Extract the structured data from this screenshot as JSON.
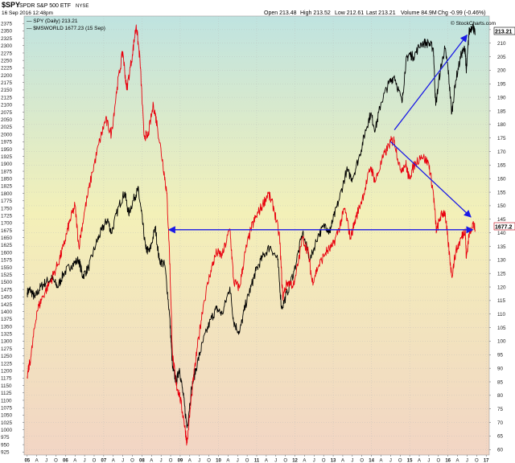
{
  "header": {
    "symbol": "$SPY",
    "name": "SPDR S&P 500 ETF",
    "exchange": "NYSE",
    "datetime": "16 Sep 2016 12:48pm",
    "open": "Open 213.48",
    "high": "High 213.52",
    "low": "Low 212.61",
    "last": "Last 213.21",
    "volume": "Volume 84.9M",
    "chg": "Chg -0.99 (-0.46%)",
    "watermark": "© StockCharts.com",
    "legend_spy": "— SPY (Daily) 213.21",
    "legend_ws": "— $MSWORLD 1677.23 (15 Sep)"
  },
  "colors": {
    "spy": "#000000",
    "msworld": "#e8000e",
    "arrow": "#1a1ae6",
    "bg_top": "#bfe3e0",
    "bg_mid": "#f3f0b8",
    "bg_bottom": "#f2d5c4"
  },
  "chart_data": {
    "type": "line",
    "left_axis": {
      "series": "$MSWORLD",
      "ylim": [
        915,
        2400
      ],
      "ticks": [
        925,
        950,
        975,
        1000,
        1025,
        1050,
        1075,
        1100,
        1125,
        1150,
        1175,
        1200,
        1225,
        1250,
        1275,
        1300,
        1325,
        1350,
        1375,
        1400,
        1425,
        1450,
        1475,
        1500,
        1525,
        1550,
        1575,
        1600,
        1625,
        1650,
        1675,
        1700,
        1725,
        1750,
        1775,
        1800,
        1825,
        1850,
        1875,
        1900,
        1925,
        1950,
        1975,
        2000,
        2025,
        2050,
        2075,
        2100,
        2125,
        2150,
        2175,
        2200,
        2225,
        2250,
        2275,
        2300,
        2325,
        2350,
        2375
      ]
    },
    "right_axis": {
      "series": "SPY",
      "ylim": [
        58,
        220
      ],
      "ticks": [
        60,
        65,
        70,
        75,
        80,
        85,
        90,
        95,
        100,
        105,
        110,
        115,
        120,
        125,
        130,
        135,
        140,
        145,
        150,
        155,
        160,
        165,
        170,
        175,
        180,
        185,
        190,
        195,
        200,
        205,
        210,
        215
      ],
      "last_value_label": "213.21",
      "msworld_value_label": "1677.2"
    },
    "x_axis": {
      "ticks": [
        "05",
        "A",
        "J",
        "O",
        "06",
        "A",
        "J",
        "O",
        "07",
        "A",
        "J",
        "O",
        "08",
        "A",
        "J",
        "O",
        "09",
        "A",
        "J",
        "O",
        "10",
        "A",
        "J",
        "O",
        "11",
        "A",
        "J",
        "O",
        "12",
        "A",
        "J",
        "O",
        "13",
        "A",
        "J",
        "O",
        "14",
        "A",
        "J",
        "O",
        "15",
        "A",
        "J",
        "O",
        "16",
        "A",
        "J",
        "O",
        "17"
      ],
      "year_ticks": [
        "05",
        "06",
        "07",
        "08",
        "09",
        "10",
        "11",
        "12",
        "13",
        "14",
        "15",
        "16",
        "17"
      ]
    },
    "series": [
      {
        "name": "SPY (Daily)",
        "axis": "right",
        "points": [
          [
            2005.0,
            118
          ],
          [
            2005.08,
            119
          ],
          [
            2005.2,
            116
          ],
          [
            2005.35,
            120
          ],
          [
            2005.5,
            122
          ],
          [
            2005.65,
            123
          ],
          [
            2005.8,
            120
          ],
          [
            2005.95,
            125
          ],
          [
            2006.15,
            128
          ],
          [
            2006.35,
            130
          ],
          [
            2006.45,
            124
          ],
          [
            2006.6,
            127
          ],
          [
            2006.8,
            136
          ],
          [
            2006.95,
            141
          ],
          [
            2007.1,
            145
          ],
          [
            2007.2,
            140
          ],
          [
            2007.4,
            150
          ],
          [
            2007.55,
            155
          ],
          [
            2007.65,
            147
          ],
          [
            2007.8,
            153
          ],
          [
            2007.9,
            156
          ],
          [
            2007.98,
            148
          ],
          [
            2008.1,
            134
          ],
          [
            2008.2,
            133
          ],
          [
            2008.35,
            142
          ],
          [
            2008.45,
            130
          ],
          [
            2008.6,
            128
          ],
          [
            2008.72,
            110
          ],
          [
            2008.8,
            90
          ],
          [
            2008.9,
            85
          ],
          [
            2008.98,
            90
          ],
          [
            2009.08,
            80
          ],
          [
            2009.18,
            68
          ],
          [
            2009.3,
            83
          ],
          [
            2009.45,
            92
          ],
          [
            2009.6,
            100
          ],
          [
            2009.8,
            108
          ],
          [
            2009.95,
            112
          ],
          [
            2010.1,
            110
          ],
          [
            2010.3,
            120
          ],
          [
            2010.4,
            107
          ],
          [
            2010.55,
            103
          ],
          [
            2010.7,
            113
          ],
          [
            2010.85,
            120
          ],
          [
            2010.98,
            126
          ],
          [
            2011.15,
            131
          ],
          [
            2011.35,
            135
          ],
          [
            2011.55,
            130
          ],
          [
            2011.65,
            112
          ],
          [
            2011.8,
            118
          ],
          [
            2011.98,
            126
          ],
          [
            2012.2,
            140
          ],
          [
            2012.4,
            130
          ],
          [
            2012.6,
            139
          ],
          [
            2012.8,
            143
          ],
          [
            2012.9,
            140
          ],
          [
            2012.98,
            144
          ],
          [
            2013.15,
            152
          ],
          [
            2013.35,
            163
          ],
          [
            2013.5,
            160
          ],
          [
            2013.7,
            169
          ],
          [
            2013.85,
            178
          ],
          [
            2013.98,
            184
          ],
          [
            2014.1,
            178
          ],
          [
            2014.25,
            188
          ],
          [
            2014.45,
            195
          ],
          [
            2014.6,
            198
          ],
          [
            2014.8,
            188
          ],
          [
            2014.9,
            203
          ],
          [
            2014.98,
            206
          ],
          [
            2015.1,
            205
          ],
          [
            2015.3,
            210
          ],
          [
            2015.5,
            210
          ],
          [
            2015.62,
            208
          ],
          [
            2015.68,
            187
          ],
          [
            2015.8,
            200
          ],
          [
            2015.92,
            208
          ],
          [
            2016.0,
            201
          ],
          [
            2016.1,
            184
          ],
          [
            2016.2,
            196
          ],
          [
            2016.35,
            206
          ],
          [
            2016.45,
            208
          ],
          [
            2016.48,
            199
          ],
          [
            2016.55,
            214
          ],
          [
            2016.65,
            217
          ],
          [
            2016.71,
            213
          ]
        ]
      },
      {
        "name": "$MSWORLD",
        "axis": "left",
        "points": [
          [
            2005.0,
            1180
          ],
          [
            2005.1,
            1250
          ],
          [
            2005.25,
            1400
          ],
          [
            2005.4,
            1450
          ],
          [
            2005.6,
            1500
          ],
          [
            2005.8,
            1560
          ],
          [
            2005.95,
            1620
          ],
          [
            2006.1,
            1700
          ],
          [
            2006.25,
            1760
          ],
          [
            2006.35,
            1620
          ],
          [
            2006.5,
            1740
          ],
          [
            2006.7,
            1870
          ],
          [
            2006.9,
            1980
          ],
          [
            2007.05,
            2050
          ],
          [
            2007.2,
            2000
          ],
          [
            2007.35,
            2160
          ],
          [
            2007.5,
            2280
          ],
          [
            2007.6,
            2150
          ],
          [
            2007.75,
            2270
          ],
          [
            2007.85,
            2370
          ],
          [
            2007.95,
            2250
          ],
          [
            2008.05,
            2000
          ],
          [
            2008.15,
            1990
          ],
          [
            2008.3,
            2100
          ],
          [
            2008.4,
            2030
          ],
          [
            2008.55,
            1900
          ],
          [
            2008.65,
            1800
          ],
          [
            2008.72,
            1600
          ],
          [
            2008.8,
            1250
          ],
          [
            2008.9,
            1150
          ],
          [
            2008.98,
            1120
          ],
          [
            2009.1,
            1030
          ],
          [
            2009.18,
            955
          ],
          [
            2009.3,
            1120
          ],
          [
            2009.45,
            1280
          ],
          [
            2009.6,
            1420
          ],
          [
            2009.8,
            1540
          ],
          [
            2009.95,
            1600
          ],
          [
            2010.1,
            1590
          ],
          [
            2010.3,
            1680
          ],
          [
            2010.4,
            1500
          ],
          [
            2010.55,
            1480
          ],
          [
            2010.7,
            1600
          ],
          [
            2010.85,
            1680
          ],
          [
            2010.98,
            1720
          ],
          [
            2011.15,
            1760
          ],
          [
            2011.3,
            1800
          ],
          [
            2011.45,
            1750
          ],
          [
            2011.6,
            1650
          ],
          [
            2011.68,
            1450
          ],
          [
            2011.8,
            1500
          ],
          [
            2011.98,
            1490
          ],
          [
            2012.2,
            1650
          ],
          [
            2012.35,
            1600
          ],
          [
            2012.45,
            1500
          ],
          [
            2012.6,
            1550
          ],
          [
            2012.8,
            1600
          ],
          [
            2012.98,
            1620
          ],
          [
            2013.15,
            1680
          ],
          [
            2013.3,
            1750
          ],
          [
            2013.45,
            1650
          ],
          [
            2013.6,
            1720
          ],
          [
            2013.8,
            1800
          ],
          [
            2013.98,
            1890
          ],
          [
            2014.1,
            1840
          ],
          [
            2014.3,
            1920
          ],
          [
            2014.5,
            1975
          ],
          [
            2014.6,
            1980
          ],
          [
            2014.75,
            1880
          ],
          [
            2014.9,
            1900
          ],
          [
            2014.98,
            1850
          ],
          [
            2015.1,
            1890
          ],
          [
            2015.3,
            1930
          ],
          [
            2015.5,
            1900
          ],
          [
            2015.62,
            1800
          ],
          [
            2015.7,
            1670
          ],
          [
            2015.8,
            1720
          ],
          [
            2015.92,
            1740
          ],
          [
            2016.0,
            1640
          ],
          [
            2016.1,
            1520
          ],
          [
            2016.2,
            1600
          ],
          [
            2016.35,
            1650
          ],
          [
            2016.45,
            1680
          ],
          [
            2016.48,
            1580
          ],
          [
            2016.55,
            1660
          ],
          [
            2016.65,
            1700
          ],
          [
            2016.71,
            1677
          ]
        ]
      }
    ],
    "annotations": [
      {
        "type": "arrow",
        "from": [
          2008.7,
          1677
        ],
        "to": [
          2016.65,
          1677
        ],
        "axis": "left",
        "heads": "both"
      },
      {
        "type": "arrow",
        "from": [
          2014.5,
          1975
        ],
        "to": [
          2016.6,
          1720
        ],
        "axis": "left",
        "heads": "end"
      },
      {
        "type": "arrow",
        "from": [
          2014.6,
          178
        ],
        "to": [
          2016.5,
          213
        ],
        "axis": "right",
        "heads": "end"
      }
    ]
  }
}
